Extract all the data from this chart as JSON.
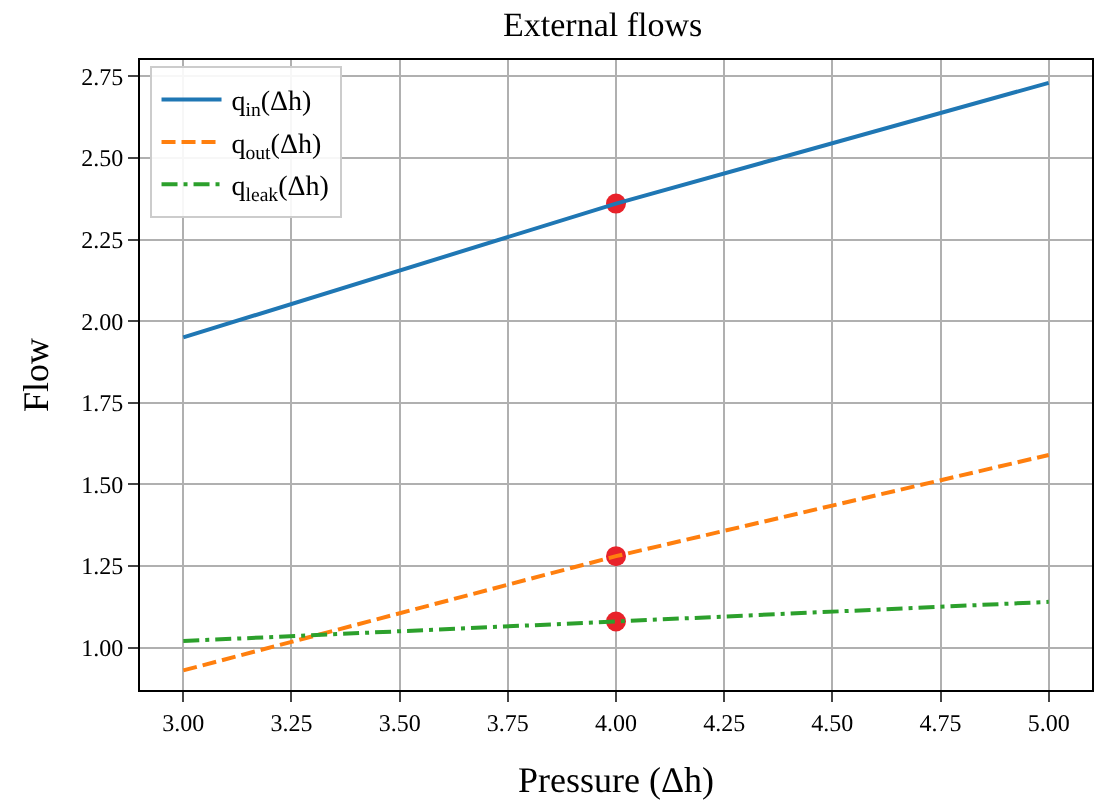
{
  "chart_data": {
    "type": "line",
    "title": "External flows",
    "xlabel": "Pressure (Δh)",
    "ylabel": "Flow",
    "grid": true,
    "legend": "top left",
    "marker": "none",
    "xlim": [
      2.9,
      5.1
    ],
    "ylim": [
      0.87,
      2.8
    ],
    "xticks": [
      {
        "value": 3,
        "label": "3.00"
      },
      {
        "value": 3.25,
        "label": "3.25"
      },
      {
        "value": 3.5,
        "label": "3.50"
      },
      {
        "value": 3.75,
        "label": "3.75"
      },
      {
        "value": 4,
        "label": "4.00"
      },
      {
        "value": 4.25,
        "label": "4.25"
      },
      {
        "value": 4.5,
        "label": "4.50"
      },
      {
        "value": 4.75,
        "label": "4.75"
      },
      {
        "value": 5,
        "label": "5.00"
      }
    ],
    "yticks": [
      {
        "value": 1,
        "label": "1.00"
      },
      {
        "value": 1.25,
        "label": "1.25"
      },
      {
        "value": 1.5,
        "label": "1.50"
      },
      {
        "value": 1.75,
        "label": "1.75"
      },
      {
        "value": 2,
        "label": "2.00"
      },
      {
        "value": 2.25,
        "label": "2.25"
      },
      {
        "value": 2.5,
        "label": "2.50"
      },
      {
        "value": 2.75,
        "label": "2.75"
      }
    ],
    "series": [
      {
        "name": "q$_{in}$(Δh)",
        "color": "#1f77b4",
        "line_style": "solid",
        "x": [
          3,
          4,
          5
        ],
        "values": [
          1.95,
          2.36,
          2.73
        ]
      },
      {
        "name": "q$_{out}$(Δh)",
        "color": "#ff7f0e",
        "line_style": "dashed",
        "x": [
          3,
          4,
          5
        ],
        "values": [
          0.93,
          1.28,
          1.59
        ]
      },
      {
        "name": "q$_{leak}$(Δh)",
        "color": "#2ca02c",
        "line_style": "dashdot",
        "x": [
          3,
          4,
          5
        ],
        "values": [
          1.02,
          1.08,
          1.14
        ]
      },
      {
        "type": "scatter",
        "marker": "circle",
        "color": "#e8222a",
        "x": [
          4,
          4,
          4
        ],
        "values": [
          2.36,
          1.28,
          1.08
        ]
      }
    ]
  }
}
